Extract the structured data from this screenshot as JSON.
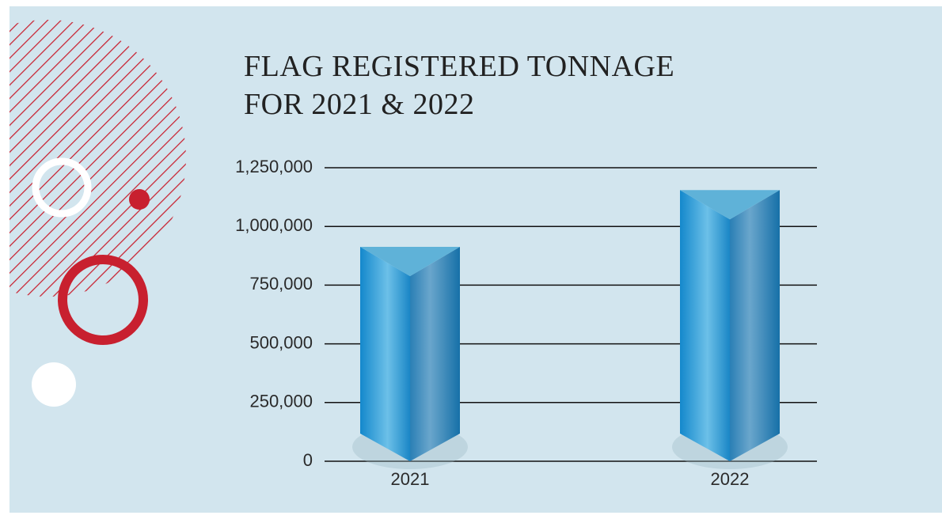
{
  "chart_data": {
    "type": "bar",
    "title": "FLAG REGISTERED TONNAGE FOR 2021 & 2022",
    "categories": [
      "2021",
      "2022"
    ],
    "values": [
      913000,
      1155000
    ],
    "color": "#1a8fd0",
    "ylim": [
      0,
      1250000
    ],
    "yticks": [
      0,
      {
        "value": 250000,
        "label": "250,000"
      },
      {
        "value": 500000,
        "label": "500,000"
      },
      {
        "value": 750000,
        "label": "750,000"
      },
      {
        "value": 1000000,
        "label": "1,000,000"
      },
      {
        "value": 1250000,
        "label": "1,250,000"
      }
    ],
    "grid": true
  }
}
